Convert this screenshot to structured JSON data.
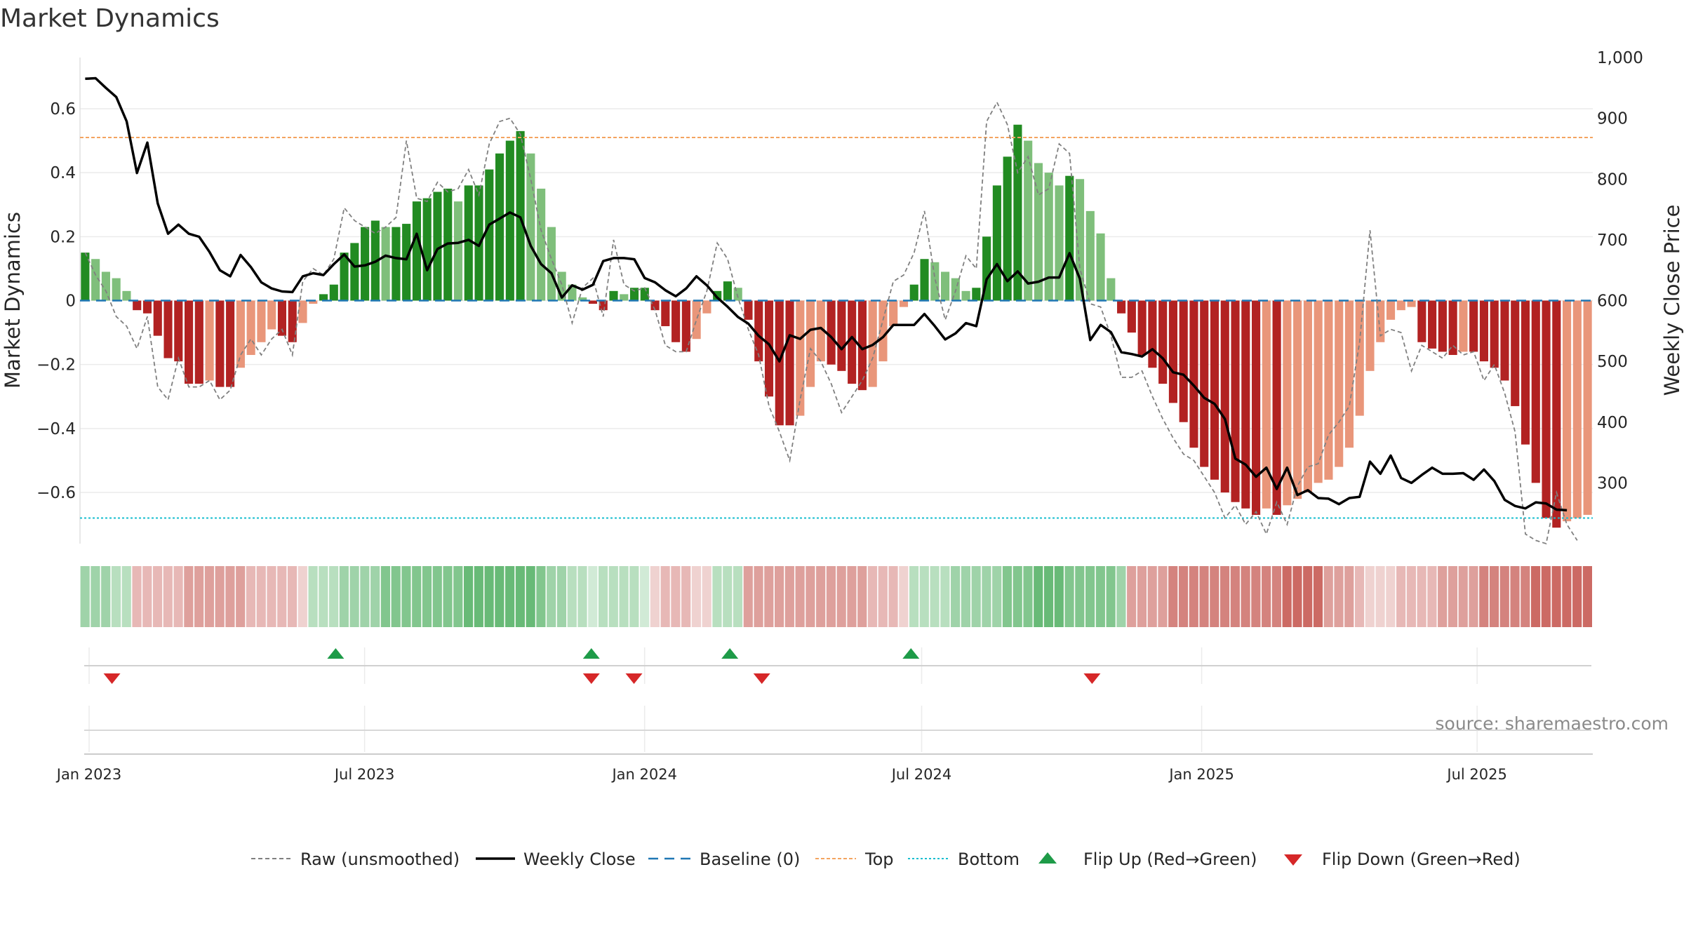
{
  "title": "Market Dynamics",
  "source_text": "source: sharemaestro.com",
  "colors": {
    "bar_strong_pos": "#228b22",
    "bar_weak_pos": "#7fbf7b",
    "bar_strong_neg": "#b22222",
    "bar_weak_neg": "#e9967a",
    "close_line": "#000000",
    "raw_line": "#808080",
    "baseline": "#1f77b4",
    "top_line": "#f4a460",
    "bottom_line": "#17becf",
    "flip_up": "#1e9b48",
    "flip_down": "#d62728"
  },
  "legend": {
    "raw": "Raw (unsmoothed)",
    "close": "Weekly Close",
    "baseline": "Baseline (0)",
    "top": "Top",
    "bottom": "Bottom",
    "flip_up": "Flip Up (Red→Green)",
    "flip_down": "Flip Down (Green→Red)"
  },
  "chart_data": {
    "type": "bar",
    "title": "Market Dynamics",
    "ylabel_left": "Market Dynamics",
    "ylabel_right": "Weekly Close Price",
    "x_start": "2022-12-26",
    "x_end": "2025-09-15",
    "ylim_left": [
      -0.76,
      0.76
    ],
    "ylim_right": [
      200,
      1000
    ],
    "left_ticks": [
      0.6,
      0.4,
      0.2,
      0,
      -0.2,
      -0.4,
      -0.6
    ],
    "left_tick_labels": [
      "0.6",
      "0.4",
      "0.2",
      "0",
      "−0.2",
      "−0.4",
      "−0.6"
    ],
    "right_ticks": [
      1000,
      900,
      800,
      700,
      600,
      500,
      400,
      300
    ],
    "right_tick_labels": [
      "1,000",
      "900",
      "800",
      "700",
      "600",
      "500",
      "400",
      "300"
    ],
    "x_ticks": [
      "2023-01-01",
      "2023-07-01",
      "2024-01-01",
      "2024-07-01",
      "2025-01-01",
      "2025-07-01"
    ],
    "x_tick_labels": [
      "Jan 2023",
      "Jul 2023",
      "Jan 2024",
      "Jul 2024",
      "Jan 2025",
      "Jul 2025"
    ],
    "top_level": 0.51,
    "bottom_level": -0.68,
    "baseline_level": 0,
    "grid": true,
    "legend_position": "bottom",
    "series": [
      {
        "name": "Market Dynamics",
        "values": [
          0.15,
          0.13,
          0.09,
          0.07,
          0.03,
          -0.03,
          -0.04,
          -0.11,
          -0.18,
          -0.19,
          -0.26,
          -0.26,
          -0.25,
          -0.27,
          -0.27,
          -0.21,
          -0.17,
          -0.13,
          -0.09,
          -0.11,
          -0.13,
          -0.07,
          -0.01,
          0.02,
          0.05,
          0.15,
          0.18,
          0.23,
          0.25,
          0.23,
          0.23,
          0.24,
          0.31,
          0.32,
          0.34,
          0.35,
          0.31,
          0.36,
          0.36,
          0.41,
          0.46,
          0.5,
          0.53,
          0.46,
          0.35,
          0.23,
          0.09,
          0.05,
          0.01,
          -0.01,
          -0.03,
          0.03,
          0.02,
          0.04,
          0.04,
          -0.03,
          -0.08,
          -0.13,
          -0.16,
          -0.12,
          -0.04,
          0.03,
          0.06,
          0.04,
          -0.06,
          -0.19,
          -0.3,
          -0.39,
          -0.39,
          -0.36,
          -0.27,
          -0.19,
          -0.2,
          -0.22,
          -0.26,
          -0.28,
          -0.27,
          -0.19,
          -0.08,
          -0.02,
          0.05,
          0.13,
          0.12,
          0.09,
          0.07,
          0.03,
          0.04,
          0.2,
          0.36,
          0.45,
          0.55,
          0.5,
          0.43,
          0.4,
          0.36,
          0.39,
          0.38,
          0.28,
          0.21,
          0.07,
          -0.04,
          -0.1,
          -0.17,
          -0.21,
          -0.26,
          -0.32,
          -0.38,
          -0.46,
          -0.52,
          -0.56,
          -0.6,
          -0.63,
          -0.65,
          -0.67,
          -0.65,
          -0.67,
          -0.64,
          -0.62,
          -0.6,
          -0.57,
          -0.56,
          -0.52,
          -0.46,
          -0.36,
          -0.22,
          -0.13,
          -0.06,
          -0.03,
          -0.02,
          -0.13,
          -0.15,
          -0.16,
          -0.17,
          -0.16,
          -0.16,
          -0.19,
          -0.21,
          -0.25,
          -0.33,
          -0.45,
          -0.57,
          -0.68,
          -0.71,
          -0.69,
          -0.68,
          -0.67
        ]
      },
      {
        "name": "Raw (unsmoothed)",
        "values": [
          0.15,
          0.08,
          0.03,
          -0.05,
          -0.08,
          -0.15,
          -0.05,
          -0.27,
          -0.31,
          -0.18,
          -0.27,
          -0.27,
          -0.25,
          -0.31,
          -0.28,
          -0.17,
          -0.12,
          -0.17,
          -0.12,
          -0.09,
          -0.17,
          0.06,
          0.1,
          0.08,
          0.13,
          0.29,
          0.25,
          0.23,
          0.21,
          0.23,
          0.26,
          0.5,
          0.32,
          0.31,
          0.37,
          0.34,
          0.35,
          0.41,
          0.33,
          0.49,
          0.56,
          0.57,
          0.52,
          0.38,
          0.22,
          0.13,
          0.05,
          -0.07,
          0.04,
          0.07,
          -0.05,
          0.19,
          0.05,
          0.03,
          0.04,
          -0.03,
          -0.14,
          -0.16,
          -0.16,
          -0.06,
          0.03,
          0.18,
          0.13,
          0.01,
          -0.09,
          -0.17,
          -0.33,
          -0.41,
          -0.5,
          -0.31,
          -0.15,
          -0.19,
          -0.26,
          -0.35,
          -0.3,
          -0.25,
          -0.18,
          -0.06,
          0.06,
          0.08,
          0.15,
          0.28,
          0.07,
          -0.06,
          0.03,
          0.14,
          0.1,
          0.56,
          0.62,
          0.55,
          0.4,
          0.45,
          0.33,
          0.35,
          0.49,
          0.46,
          0.1,
          -0.01,
          -0.02,
          -0.11,
          -0.24,
          -0.24,
          -0.22,
          -0.3,
          -0.37,
          -0.43,
          -0.48,
          -0.5,
          -0.55,
          -0.6,
          -0.68,
          -0.64,
          -0.7,
          -0.66,
          -0.73,
          -0.63,
          -0.7,
          -0.58,
          -0.52,
          -0.51,
          -0.42,
          -0.38,
          -0.33,
          -0.13,
          0.22,
          -0.11,
          -0.09,
          -0.1,
          -0.22,
          -0.14,
          -0.16,
          -0.18,
          -0.14,
          -0.17,
          -0.16,
          -0.25,
          -0.2,
          -0.29,
          -0.41,
          -0.73,
          -0.75,
          -0.76,
          -0.6,
          -0.7,
          -0.75
        ]
      },
      {
        "name": "Weekly Close",
        "axis": "right",
        "values": [
          965,
          966,
          950,
          935,
          895,
          810,
          860,
          760,
          710,
          725,
          710,
          705,
          680,
          650,
          640,
          675,
          655,
          630,
          620,
          615,
          614,
          640,
          645,
          642,
          660,
          676,
          656,
          658,
          664,
          674,
          670,
          668,
          710,
          650,
          685,
          694,
          695,
          700,
          690,
          725,
          735,
          745,
          737,
          690,
          660,
          645,
          605,
          625,
          618,
          626,
          665,
          670,
          670,
          668,
          637,
          630,
          617,
          607,
          620,
          640,
          625,
          605,
          590,
          573,
          562,
          542,
          528,
          500,
          543,
          537,
          552,
          555,
          540,
          520,
          540,
          520,
          527,
          540,
          560,
          560,
          560,
          578,
          558,
          536,
          546,
          563,
          558,
          635,
          660,
          632,
          648,
          628,
          631,
          638,
          638,
          678,
          636,
          535,
          560,
          548,
          515,
          512,
          508,
          520,
          505,
          482,
          478,
          460,
          440,
          430,
          405,
          340,
          330,
          310,
          325,
          290,
          325,
          280,
          288,
          275,
          274,
          265,
          275,
          277,
          335,
          315,
          345,
          308,
          300,
          313,
          325,
          315,
          315,
          316,
          305,
          322,
          303,
          272,
          262,
          258,
          268,
          266,
          256,
          255
        ]
      }
    ],
    "regime_strip": [
      3,
      3,
      3,
      2,
      2,
      -2,
      -2,
      -2,
      -2,
      -2,
      -3,
      -3,
      -3,
      -3,
      -3,
      -3,
      -2,
      -2,
      -2,
      -2,
      -2,
      -1,
      2,
      2,
      2,
      3,
      3,
      3,
      3,
      4,
      4,
      4,
      4,
      4,
      4,
      4,
      4,
      5,
      5,
      5,
      5,
      5,
      5,
      5,
      4,
      3,
      3,
      2,
      2,
      1,
      2,
      2,
      2,
      2,
      1,
      -1,
      -2,
      -2,
      -2,
      -1,
      -1,
      2,
      2,
      2,
      -3,
      -3,
      -3,
      -3,
      -3,
      -3,
      -3,
      -3,
      -3,
      -3,
      -3,
      -3,
      -2,
      -2,
      -2,
      -1,
      2,
      2,
      2,
      2,
      3,
      3,
      3,
      3,
      3,
      4,
      4,
      4,
      5,
      5,
      5,
      4,
      4,
      4,
      4,
      4,
      3,
      -3,
      -3,
      -3,
      -3,
      -4,
      -4,
      -4,
      -4,
      -4,
      -4,
      -4,
      -4,
      -4,
      -4,
      -4,
      -5,
      -5,
      -5,
      -5,
      -3,
      -3,
      -3,
      -2,
      -1,
      -1,
      -1,
      -2,
      -2,
      -2,
      -2,
      -3,
      -3,
      -3,
      -3,
      -4,
      -4,
      -4,
      -4,
      -4,
      -5,
      -5,
      -5,
      -5,
      -5,
      -5
    ],
    "flip_up_dates": [
      "2023-06-12",
      "2023-11-27",
      "2024-02-26",
      "2024-06-24"
    ],
    "flip_down_dates": [
      "2023-01-16",
      "2023-11-27",
      "2023-12-25",
      "2024-03-18",
      "2024-10-21"
    ]
  }
}
